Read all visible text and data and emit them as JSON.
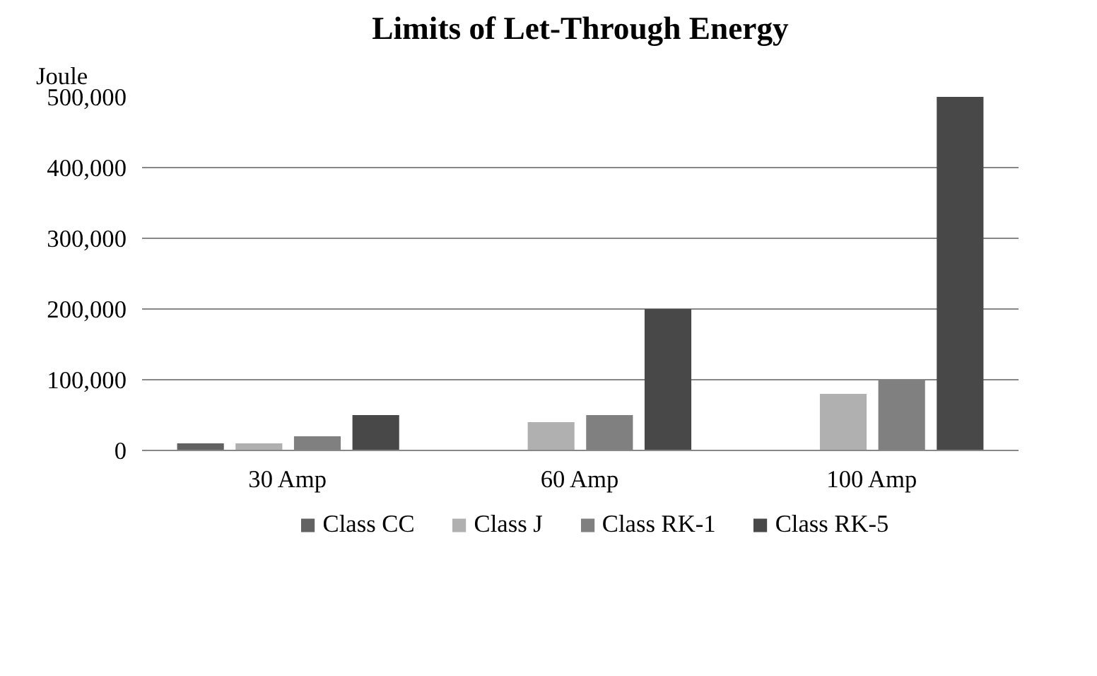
{
  "chart_data": {
    "type": "bar",
    "title": "Limits of Let-Through Energy",
    "ylabel": "Joule",
    "categories": [
      "30 Amp",
      "60 Amp",
      "100 Amp"
    ],
    "series": [
      {
        "name": "Class CC",
        "color": "#626262",
        "values": [
          10000,
          null,
          null
        ]
      },
      {
        "name": "Class J",
        "color": "#b0b0b0",
        "values": [
          10000,
          40000,
          80000
        ]
      },
      {
        "name": "Class RK-1",
        "color": "#808080",
        "values": [
          20000,
          50000,
          100000
        ]
      },
      {
        "name": "Class RK-5",
        "color": "#484848",
        "values": [
          50000,
          200000,
          500000
        ]
      }
    ],
    "ylim": [
      0,
      500000
    ],
    "yticks": [
      {
        "value": 0,
        "label": "0"
      },
      {
        "value": 100000,
        "label": "100,000"
      },
      {
        "value": 200000,
        "label": "200,000"
      },
      {
        "value": 300000,
        "label": "300,000"
      },
      {
        "value": 400000,
        "label": "400,000"
      },
      {
        "value": 500000,
        "label": "500,000"
      }
    ],
    "grid": "y",
    "legend": "bottom"
  }
}
